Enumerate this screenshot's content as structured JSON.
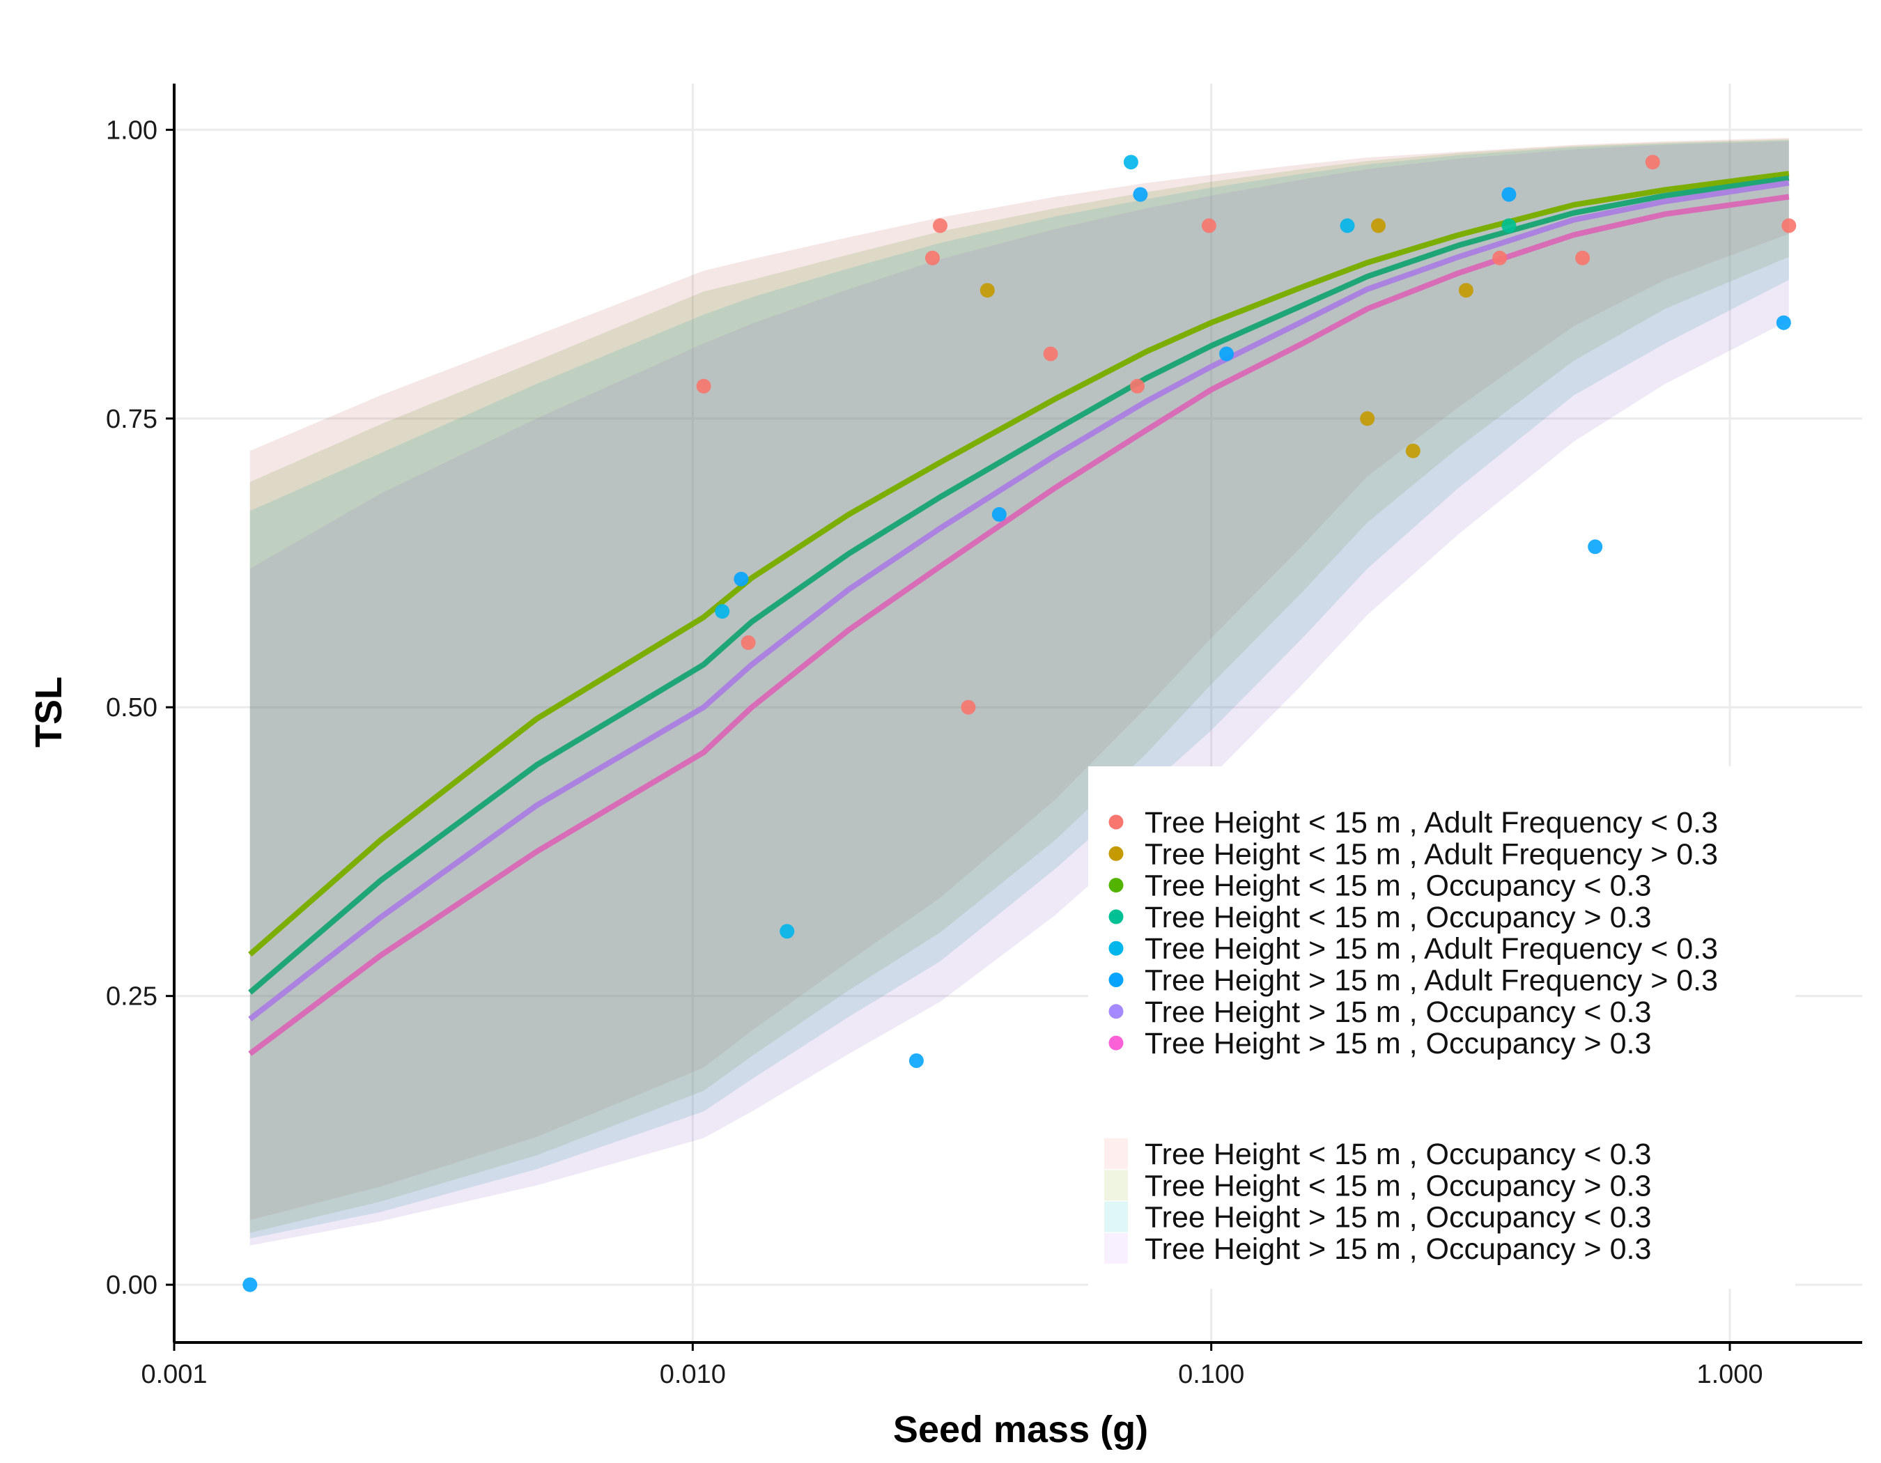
{
  "chart_data": {
    "type": "scatter",
    "xlabel": "Seed mass (g)",
    "ylabel": "TSL",
    "xscale": "log",
    "xlim": [
      0.001,
      1.8
    ],
    "ylim": [
      -0.05,
      1.04
    ],
    "grid": true,
    "legend_position": "bottom-right",
    "x_ticks": [
      {
        "value": 0.001,
        "label": "0.001"
      },
      {
        "value": 0.01,
        "label": "0.010"
      },
      {
        "value": 0.1,
        "label": "0.100"
      },
      {
        "value": 1,
        "label": "1.000"
      }
    ],
    "y_ticks": [
      {
        "value": 0,
        "label": "0.00"
      },
      {
        "value": 0.25,
        "label": "0.25"
      },
      {
        "value": 0.5,
        "label": "0.50"
      },
      {
        "value": 0.75,
        "label": "0.75"
      },
      {
        "value": 1,
        "label": "1.00"
      }
    ],
    "point_series": [
      {
        "name": "Tree Height < 15 m , Adult Frequency < 0.3",
        "color": "#F8766D",
        "points": [
          [
            0.0105,
            0.778
          ],
          [
            0.0128,
            0.556
          ],
          [
            0.029,
            0.889
          ],
          [
            0.03,
            0.917
          ],
          [
            0.034,
            0.5
          ],
          [
            0.049,
            0.806
          ],
          [
            0.072,
            0.778
          ],
          [
            0.099,
            0.917
          ],
          [
            0.36,
            0.889
          ],
          [
            0.52,
            0.889
          ],
          [
            0.71,
            0.972
          ],
          [
            1.3,
            0.917
          ]
        ]
      },
      {
        "name": "Tree Height < 15 m , Adult Frequency > 0.3",
        "color": "#C49A00",
        "points": [
          [
            0.037,
            0.861
          ],
          [
            0.2,
            0.75
          ],
          [
            0.21,
            0.917
          ],
          [
            0.245,
            0.722
          ],
          [
            0.31,
            0.861
          ]
        ]
      },
      {
        "name": "Tree Height < 15 m , Occupancy < 0.3",
        "color": "#53B400",
        "points": []
      },
      {
        "name": "Tree Height < 15 m , Occupancy > 0.3",
        "color": "#00C094",
        "points": [
          [
            0.375,
            0.917
          ]
        ]
      },
      {
        "name": "Tree Height > 15 m , Adult Frequency < 0.3",
        "color": "#00B6EB",
        "points": [
          [
            0.0114,
            0.583
          ],
          [
            0.0152,
            0.306
          ],
          [
            0.07,
            0.972
          ],
          [
            0.183,
            0.917
          ]
        ]
      },
      {
        "name": "Tree Height > 15 m , Adult Frequency > 0.3",
        "color": "#06A4FF",
        "points": [
          [
            0.0014,
            0.0
          ],
          [
            0.0124,
            0.611
          ],
          [
            0.027,
            0.194
          ],
          [
            0.039,
            0.667
          ],
          [
            0.073,
            0.944
          ],
          [
            0.107,
            0.806
          ],
          [
            0.375,
            0.944
          ],
          [
            0.55,
            0.639
          ],
          [
            1.27,
            0.833
          ]
        ]
      },
      {
        "name": "Tree Height > 15 m , Occupancy < 0.3",
        "color": "#A58AFF",
        "points": []
      },
      {
        "name": "Tree Height > 15 m , Occupancy > 0.3",
        "color": "#FB61D7",
        "points": []
      }
    ],
    "x_grid": [
      0.0014,
      0.0025,
      0.005,
      0.0105,
      0.013,
      0.02,
      0.03,
      0.05,
      0.075,
      0.1,
      0.15,
      0.2,
      0.3,
      0.5,
      0.75,
      1.3
    ],
    "fit_series": [
      {
        "name": "Tree Height < 15 m , Occupancy < 0.3",
        "line_color": "#7CAE00",
        "band_color": "#F8766D",
        "y": [
          0.286,
          0.385,
          0.49,
          0.578,
          0.612,
          0.667,
          0.712,
          0.767,
          0.808,
          0.833,
          0.864,
          0.885,
          0.909,
          0.935,
          0.948,
          0.962
        ],
        "upper": [
          0.722,
          0.77,
          0.822,
          0.878,
          0.888,
          0.907,
          0.924,
          0.942,
          0.954,
          0.961,
          0.97,
          0.976,
          0.981,
          0.987,
          0.99,
          0.993
        ],
        "lower": [
          0.056,
          0.085,
          0.128,
          0.188,
          0.22,
          0.28,
          0.335,
          0.42,
          0.5,
          0.56,
          0.64,
          0.7,
          0.76,
          0.83,
          0.87,
          0.91
        ]
      },
      {
        "name": "Tree Height < 15 m , Occupancy > 0.3",
        "line_color": "#1FA676",
        "band_color": "#7CAE00",
        "y": [
          0.253,
          0.35,
          0.45,
          0.537,
          0.574,
          0.633,
          0.682,
          0.74,
          0.785,
          0.813,
          0.848,
          0.873,
          0.9,
          0.928,
          0.943,
          0.958
        ],
        "upper": [
          0.695,
          0.745,
          0.8,
          0.86,
          0.87,
          0.892,
          0.912,
          0.932,
          0.946,
          0.955,
          0.966,
          0.973,
          0.98,
          0.986,
          0.989,
          0.992
        ],
        "lower": [
          0.045,
          0.072,
          0.112,
          0.168,
          0.198,
          0.255,
          0.305,
          0.385,
          0.46,
          0.52,
          0.6,
          0.66,
          0.725,
          0.8,
          0.845,
          0.89
        ]
      },
      {
        "name": "Tree Height > 15 m , Occupancy < 0.3",
        "line_color": "#AB82DF",
        "band_color": "#00BFC4",
        "y": [
          0.23,
          0.318,
          0.415,
          0.5,
          0.537,
          0.602,
          0.655,
          0.718,
          0.765,
          0.795,
          0.834,
          0.862,
          0.89,
          0.922,
          0.938,
          0.954
        ],
        "upper": [
          0.67,
          0.72,
          0.78,
          0.84,
          0.855,
          0.88,
          0.902,
          0.925,
          0.94,
          0.95,
          0.962,
          0.97,
          0.978,
          0.985,
          0.988,
          0.991
        ],
        "lower": [
          0.04,
          0.063,
          0.1,
          0.15,
          0.178,
          0.232,
          0.28,
          0.36,
          0.43,
          0.48,
          0.56,
          0.62,
          0.69,
          0.77,
          0.815,
          0.87
        ]
      },
      {
        "name": "Tree Height > 15 m , Occupancy > 0.3",
        "line_color": "#D96CB6",
        "band_color": "#C77CFF",
        "y": [
          0.2,
          0.285,
          0.375,
          0.461,
          0.5,
          0.567,
          0.622,
          0.69,
          0.74,
          0.775,
          0.815,
          0.845,
          0.876,
          0.909,
          0.927,
          0.942
        ],
        "upper": [
          0.62,
          0.685,
          0.75,
          0.815,
          0.832,
          0.862,
          0.888,
          0.914,
          0.932,
          0.943,
          0.957,
          0.966,
          0.975,
          0.983,
          0.987,
          0.99
        ],
        "lower": [
          0.034,
          0.055,
          0.086,
          0.127,
          0.15,
          0.2,
          0.245,
          0.32,
          0.39,
          0.44,
          0.52,
          0.58,
          0.65,
          0.73,
          0.78,
          0.835
        ]
      }
    ]
  }
}
